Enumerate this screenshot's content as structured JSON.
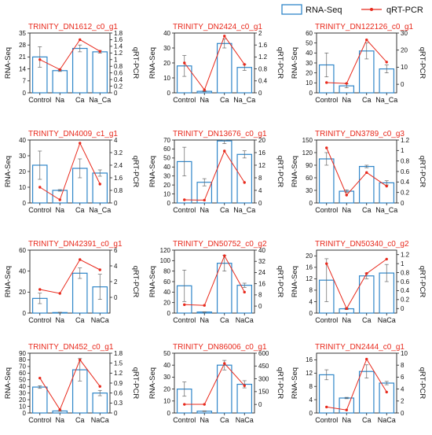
{
  "legend": {
    "bar_label": "RNA-Seq",
    "line_label": "qRT-PCR",
    "bar_color": "#2f86c9",
    "line_color": "#e8291c"
  },
  "chart_data": [
    {
      "type": "bar",
      "title": "TRINITY_DN1612_c0_g1",
      "categories": [
        "Control",
        "Na",
        "Ca",
        "Na_Ca"
      ],
      "ylabel": "RNA-Seq",
      "y2label": "qRT-PCR",
      "ylim": [
        0,
        35
      ],
      "yticks": [
        0,
        7,
        14,
        21,
        28,
        35
      ],
      "y2lim": [
        0,
        1.8
      ],
      "y2ticks": [
        0,
        0.2,
        0.4,
        0.6,
        0.8,
        1.0,
        1.2,
        1.4,
        1.6,
        1.8
      ],
      "series": [
        {
          "name": "RNA-Seq",
          "type": "bar",
          "values": [
            21,
            13,
            26,
            24
          ],
          "errors": [
            6,
            0.5,
            2,
            0.8
          ]
        },
        {
          "name": "qRT-PCR",
          "type": "line",
          "values": [
            1.0,
            0.7,
            1.6,
            1.25
          ]
        }
      ]
    },
    {
      "type": "bar",
      "title": "TRINITY_DN2424_c0_g1",
      "categories": [
        "Control",
        "Na",
        "Ca",
        "Na_Ca"
      ],
      "ylabel": "RNA-Seq",
      "y2label": "qRT-PCR",
      "ylim": [
        0,
        40
      ],
      "yticks": [
        0,
        10,
        20,
        30,
        40
      ],
      "y2lim": [
        0,
        2.0
      ],
      "y2ticks": [
        0,
        0.4,
        0.8,
        1.2,
        1.6,
        2.0
      ],
      "series": [
        {
          "name": "RNA-Seq",
          "type": "bar",
          "values": [
            18,
            1,
            33,
            17
          ],
          "errors": [
            7,
            0.3,
            3,
            2
          ]
        },
        {
          "name": "qRT-PCR",
          "type": "line",
          "values": [
            1.0,
            0.1,
            1.9,
            0.95
          ]
        }
      ]
    },
    {
      "type": "bar",
      "title": "TRINITY_DN122126_c0_g1",
      "categories": [
        "Control",
        "Na",
        "Ca",
        "Na_Ca"
      ],
      "ylabel": "RNA-Seq",
      "y2label": "qRT-PCR",
      "ylim": [
        0,
        60
      ],
      "yticks": [
        0,
        10,
        20,
        30,
        40,
        50,
        60
      ],
      "y2lim": [
        -5,
        30
      ],
      "y2ticks": [
        0,
        10,
        20,
        30
      ],
      "series": [
        {
          "name": "RNA-Seq",
          "type": "bar",
          "values": [
            28,
            7,
            42,
            24
          ],
          "errors": [
            12,
            2,
            8,
            4
          ]
        },
        {
          "name": "qRT-PCR",
          "type": "line",
          "values": [
            1.0,
            0.5,
            26,
            13
          ]
        }
      ]
    },
    {
      "type": "bar",
      "title": "TRINITY_DN4009_c1_g1",
      "categories": [
        "Control",
        "Na",
        "Ca",
        "Na_Ca"
      ],
      "ylabel": "RNA-Seq",
      "y2label": "qRT-PCR",
      "ylim": [
        0,
        40
      ],
      "yticks": [
        0,
        10,
        20,
        30,
        40
      ],
      "y2lim": [
        0,
        4.0
      ],
      "y2ticks": [
        0,
        0.8,
        1.6,
        2.4,
        3.2,
        4.0
      ],
      "series": [
        {
          "name": "RNA-Seq",
          "type": "bar",
          "values": [
            24,
            8,
            22,
            19
          ],
          "errors": [
            9,
            0.5,
            6,
            2
          ]
        },
        {
          "name": "qRT-PCR",
          "type": "line",
          "values": [
            1.0,
            0.2,
            3.8,
            1.2
          ]
        }
      ]
    },
    {
      "type": "bar",
      "title": "TRINITY_DN13676_c0_g1",
      "categories": [
        "Control",
        "Na",
        "Ca",
        "Na_Ca"
      ],
      "ylabel": "RNA-Seq",
      "y2label": "qRT-PCR",
      "ylim": [
        0,
        70
      ],
      "yticks": [
        0,
        10,
        20,
        30,
        40,
        50,
        60,
        70
      ],
      "y2lim": [
        0,
        20
      ],
      "y2ticks": [
        0,
        4,
        8,
        12,
        16,
        20
      ],
      "series": [
        {
          "name": "RNA-Seq",
          "type": "bar",
          "values": [
            46,
            23,
            69,
            54
          ],
          "errors": [
            16,
            4,
            3,
            4
          ]
        },
        {
          "name": "qRT-PCR",
          "type": "line",
          "values": [
            1.0,
            0.9,
            16.5,
            6.5
          ]
        }
      ]
    },
    {
      "type": "bar",
      "title": "TRINITY_DN3789_c0_g3",
      "categories": [
        "Control",
        "Na",
        "Ca",
        "Na_Ca"
      ],
      "ylabel": "RNA-Seq",
      "y2label": "qRT-PCR",
      "ylim": [
        0,
        150
      ],
      "yticks": [
        0,
        30,
        60,
        90,
        120,
        150
      ],
      "y2lim": [
        0,
        1.2
      ],
      "y2ticks": [
        0,
        0.2,
        0.4,
        0.6,
        0.8,
        1.0,
        1.2
      ],
      "series": [
        {
          "name": "RNA-Seq",
          "type": "bar",
          "values": [
            105,
            28,
            87,
            48
          ],
          "errors": [
            15,
            3,
            3,
            5
          ]
        },
        {
          "name": "qRT-PCR",
          "type": "line",
          "values": [
            1.05,
            0.15,
            0.58,
            0.32
          ]
        }
      ]
    },
    {
      "type": "bar",
      "title": "TRINITY_DN42391_c0_g1",
      "categories": [
        "Control",
        "Na",
        "Ca",
        "NaCa"
      ],
      "ylabel": "RNA-Seq",
      "y2label": "qRT-PCR",
      "ylim": [
        0,
        60
      ],
      "yticks": [
        0,
        20,
        40,
        60
      ],
      "y2lim": [
        -2,
        6
      ],
      "y2ticks": [
        0,
        2,
        4,
        6
      ],
      "series": [
        {
          "name": "RNA-Seq",
          "type": "bar",
          "values": [
            14,
            0.5,
            38,
            25
          ],
          "errors": [
            5,
            0.3,
            5,
            12
          ]
        },
        {
          "name": "qRT-PCR",
          "type": "line",
          "values": [
            1.0,
            0.5,
            4.8,
            3.5
          ]
        }
      ]
    },
    {
      "type": "bar",
      "title": "TRINITY_DN50752_c0_g2",
      "categories": [
        "Control",
        "Na",
        "Ca",
        "NaCa"
      ],
      "ylabel": "RNA-Seq",
      "y2label": "qRT-PCR",
      "ylim": [
        0,
        120
      ],
      "yticks": [
        0,
        20,
        40,
        60,
        80,
        100,
        120
      ],
      "y2lim": [
        -5,
        40
      ],
      "y2ticks": [
        0,
        8,
        16,
        24,
        32,
        40
      ],
      "series": [
        {
          "name": "RNA-Seq",
          "type": "bar",
          "values": [
            52,
            2,
            95,
            53
          ],
          "errors": [
            30,
            0.5,
            15,
            4
          ]
        },
        {
          "name": "qRT-PCR",
          "type": "line",
          "values": [
            1.0,
            0.5,
            36,
            10
          ]
        }
      ]
    },
    {
      "type": "bar",
      "title": "TRINITY_DN50340_c0_g2",
      "categories": [
        "Control",
        "Na",
        "Ca",
        "NaCa"
      ],
      "ylabel": "RNA-Seq",
      "y2label": "qRT-PCR",
      "ylim": [
        0,
        22
      ],
      "yticks": [
        0,
        4,
        8,
        12,
        16,
        20
      ],
      "y2lim": [
        -0.1,
        1.3
      ],
      "y2ticks": [
        0,
        0.2,
        0.4,
        0.6,
        0.8,
        1.0,
        1.2
      ],
      "series": [
        {
          "name": "RNA-Seq",
          "type": "bar",
          "values": [
            11.5,
            1.5,
            13,
            14
          ],
          "errors": [
            7.5,
            0.3,
            1,
            3
          ]
        },
        {
          "name": "qRT-PCR",
          "type": "line",
          "values": [
            1.0,
            0.0,
            0.78,
            1.1
          ]
        }
      ]
    },
    {
      "type": "bar",
      "title": "TRINITY_DN452_c0_g1",
      "categories": [
        "Control",
        "Na",
        "Ca",
        "NaCa"
      ],
      "ylabel": "RNA-Seq",
      "y2label": "qRT-PCR",
      "ylim": [
        0,
        90
      ],
      "yticks": [
        0,
        10,
        20,
        30,
        40,
        50,
        60,
        70,
        80,
        90
      ],
      "y2lim": [
        0,
        1.8
      ],
      "y2ticks": [
        0,
        0.3,
        0.6,
        0.9,
        1.2,
        1.5,
        1.8
      ],
      "series": [
        {
          "name": "RNA-Seq",
          "type": "bar",
          "values": [
            39,
            3,
            65,
            30
          ],
          "errors": [
            2,
            0.5,
            17,
            4
          ]
        },
        {
          "name": "qRT-PCR",
          "type": "line",
          "values": [
            1.05,
            0.1,
            1.6,
            0.8
          ]
        }
      ]
    },
    {
      "type": "bar",
      "title": "TRINITY_DN86006_c0_g1",
      "categories": [
        "Control",
        "Na",
        "Ca",
        "NaCa"
      ],
      "ylabel": "RNA-Seq",
      "y2label": "qRT-PCR",
      "ylim": [
        0,
        50
      ],
      "yticks": [
        0,
        10,
        20,
        30,
        40,
        50
      ],
      "y2lim": [
        -100,
        600
      ],
      "y2ticks": [
        0,
        150,
        300,
        450,
        600
      ],
      "series": [
        {
          "name": "RNA-Seq",
          "type": "bar",
          "values": [
            20,
            1.5,
            40,
            24
          ],
          "errors": [
            6,
            0.3,
            4,
            3
          ]
        },
        {
          "name": "qRT-PCR",
          "type": "line",
          "values": [
            1.0,
            1.0,
            480,
            220
          ]
        }
      ]
    },
    {
      "type": "bar",
      "title": "TRINITY_DN2444_c0_g1",
      "categories": [
        "Control",
        "Na",
        "Ca",
        "NaCa"
      ],
      "ylabel": "RNA-Seq",
      "y2label": "qRT-PCR",
      "ylim": [
        0,
        18
      ],
      "yticks": [
        0,
        4,
        8,
        12,
        16
      ],
      "y2lim": [
        0,
        10
      ],
      "y2ticks": [
        0,
        2,
        4,
        6,
        8,
        10
      ],
      "series": [
        {
          "name": "RNA-Seq",
          "type": "bar",
          "values": [
            11.5,
            4.5,
            12.5,
            9
          ],
          "errors": [
            1.5,
            0.2,
            2,
            0.5
          ]
        },
        {
          "name": "qRT-PCR",
          "type": "line",
          "values": [
            1.0,
            0.5,
            9.0,
            3.5
          ]
        }
      ]
    }
  ]
}
